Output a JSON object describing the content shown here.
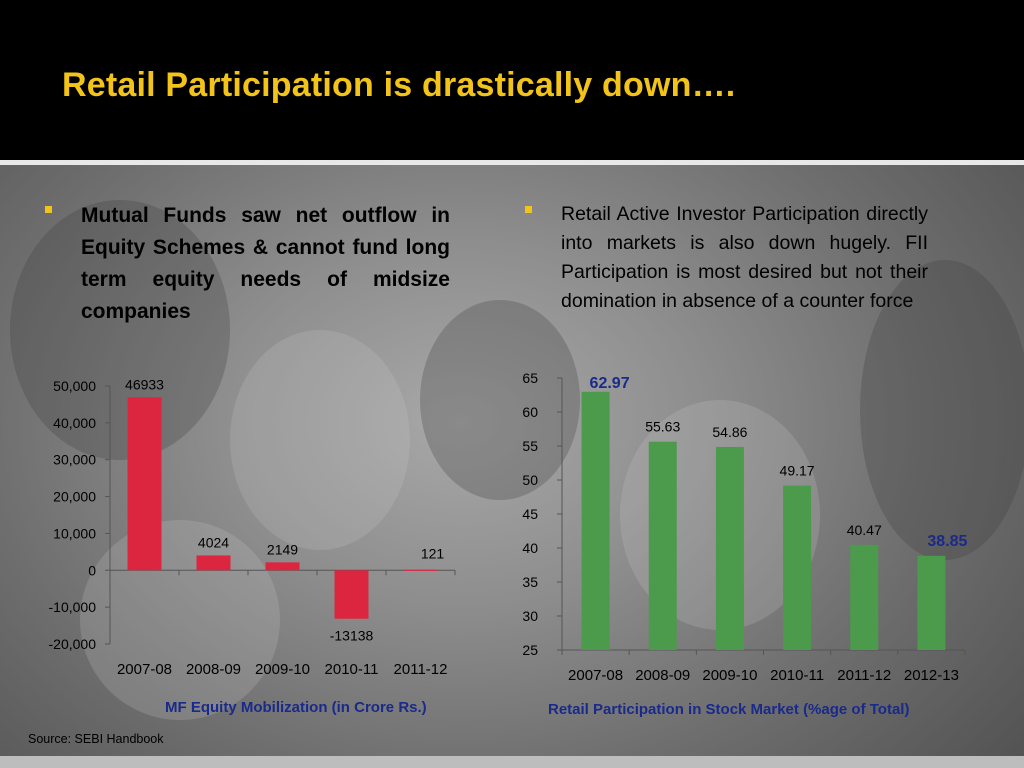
{
  "title": "Retail Participation is drastically down….",
  "bullets": {
    "left": "Mutual Funds saw net outflow in Equity Schemes & cannot fund long term equity needs of midsize companies",
    "right": "Retail Active Investor Participation directly into markets is also down hugely. FII Participation is most desired but not their domination in absence of a counter force"
  },
  "source": "Source: SEBI Handbook",
  "colors": {
    "title": "#f2c318",
    "left_bars": "#dc2640",
    "right_bars": "#4c9a4c",
    "chart_title": "#1a2a8a"
  },
  "chart_data": [
    {
      "type": "bar",
      "title": "MF Equity Mobilization (in Crore Rs.)",
      "categories": [
        "2007-08",
        "2008-09",
        "2009-10",
        "2010-11",
        "2011-12"
      ],
      "values": [
        46933,
        4024,
        2149,
        -13138,
        121
      ],
      "data_labels": [
        "46933",
        "4024",
        "2149",
        "-13138",
        "121"
      ],
      "ylim": [
        -20000,
        50000
      ],
      "yticks": [
        50000,
        40000,
        30000,
        20000,
        10000,
        0,
        -10000,
        -20000
      ],
      "ytick_labels": [
        "50,000",
        "40,000",
        "30,000",
        "20,000",
        "10,000",
        "0",
        "-10,000",
        "-20,000"
      ],
      "grid": false
    },
    {
      "type": "bar",
      "title": "Retail Participation in Stock Market (%age of Total)",
      "categories": [
        "2007-08",
        "2008-09",
        "2009-10",
        "2010-11",
        "2011-12",
        "2012-13"
      ],
      "values": [
        62.97,
        55.63,
        54.86,
        49.17,
        40.47,
        38.85
      ],
      "data_labels": [
        "62.97",
        "55.63",
        "54.86",
        "49.17",
        "40.47",
        "38.85"
      ],
      "highlighted_labels": [
        "62.97",
        "38.85"
      ],
      "ylim": [
        25,
        65
      ],
      "yticks": [
        65,
        60,
        55,
        50,
        45,
        40,
        35,
        30,
        25
      ],
      "ytick_labels": [
        "65",
        "60",
        "55",
        "50",
        "45",
        "40",
        "35",
        "30",
        "25"
      ],
      "grid": false
    }
  ]
}
